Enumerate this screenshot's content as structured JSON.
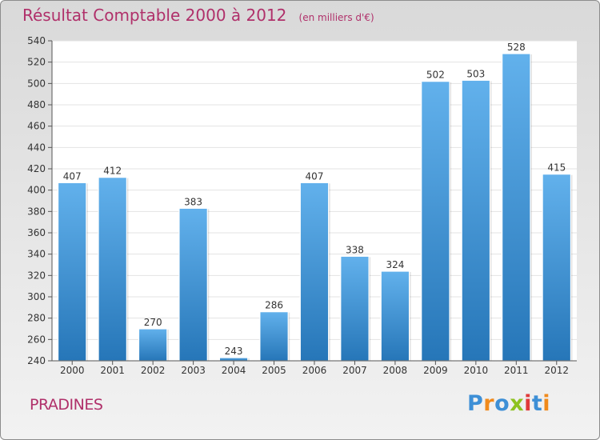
{
  "header": {
    "title": "Résultat Comptable 2000 à 2012",
    "subtitle": "(en milliers d'€)"
  },
  "footer": {
    "commune": "PRADINES",
    "logo_letters": [
      "P",
      "r",
      "o",
      "x",
      "i",
      "t",
      "i"
    ],
    "logo_colors": [
      "#3d8fd6",
      "#f08a1c",
      "#3d8fd6",
      "#8dc21f",
      "#e03a3a",
      "#3d8fd6",
      "#f08a1c"
    ]
  },
  "chart_data": {
    "type": "bar",
    "title": "Résultat Comptable 2000 à 2012",
    "subtitle": "(en milliers d'€)",
    "categories": [
      "2000",
      "2001",
      "2002",
      "2003",
      "2004",
      "2005",
      "2006",
      "2007",
      "2008",
      "2009",
      "2010",
      "2011",
      "2012"
    ],
    "values": [
      407,
      412,
      270,
      383,
      243,
      286,
      407,
      338,
      324,
      502,
      503,
      528,
      415
    ],
    "ylim": [
      240,
      540
    ],
    "yticks": [
      240,
      260,
      280,
      300,
      320,
      340,
      360,
      380,
      400,
      420,
      440,
      460,
      480,
      500,
      520,
      540
    ],
    "grid": true,
    "bar_color": "#3a8fd8",
    "bar_color_light": "#62b1ec",
    "data_labels": true
  }
}
